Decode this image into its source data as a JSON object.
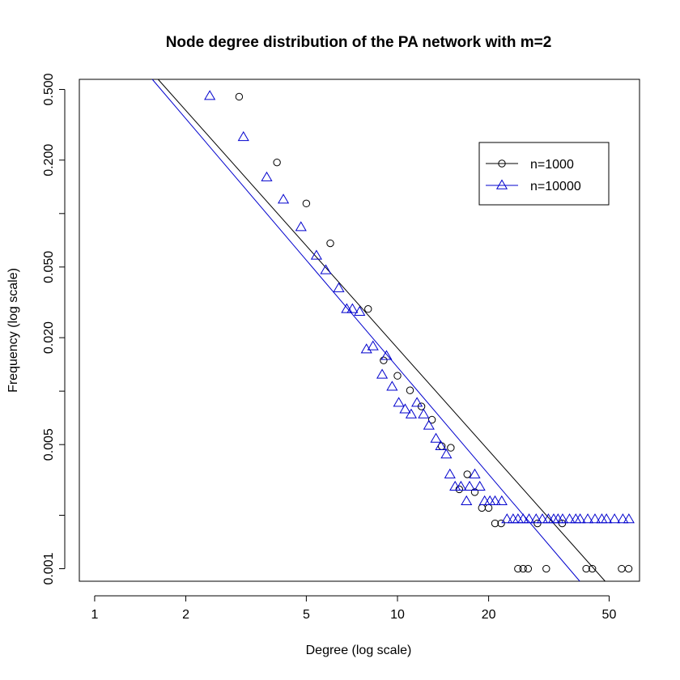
{
  "chart_data": {
    "type": "scatter",
    "title": "Node degree distribution of the PA network with m=2",
    "xlabel": "Degree (log scale)",
    "ylabel": "Frequency (log scale)",
    "x_scale": "log",
    "y_scale": "log",
    "xlim": [
      0.89,
      63
    ],
    "ylim": [
      0.00085,
      0.57
    ],
    "x_ticks": [
      1,
      2,
      5,
      10,
      20,
      50
    ],
    "x_tick_labels": [
      "1",
      "2",
      "5",
      "10",
      "20",
      "50"
    ],
    "y_ticks": [
      0.001,
      0.002,
      0.005,
      0.01,
      0.02,
      0.05,
      0.1,
      0.2,
      0.5
    ],
    "y_tick_labels": [
      "0.001",
      "",
      "0.005",
      "",
      "0.020",
      "0.050",
      "",
      "0.200",
      "0.500"
    ],
    "grid": false,
    "legend_position": "top-right",
    "series": [
      {
        "name": "n=1000",
        "color": "#000000",
        "marker": "circle",
        "points": [
          [
            3,
            0.455
          ],
          [
            4,
            0.194
          ],
          [
            5,
            0.114
          ],
          [
            6,
            0.068
          ],
          [
            8,
            0.029
          ],
          [
            9,
            0.0149
          ],
          [
            10,
            0.0122
          ],
          [
            11,
            0.0101
          ],
          [
            12,
            0.0082
          ],
          [
            13,
            0.0069
          ],
          [
            14,
            0.0049
          ],
          [
            15,
            0.0048
          ],
          [
            16,
            0.0028
          ],
          [
            17,
            0.0034
          ],
          [
            18,
            0.0027
          ],
          [
            19,
            0.0022
          ],
          [
            20,
            0.0022
          ],
          [
            21,
            0.0018
          ],
          [
            22,
            0.0018
          ],
          [
            25,
            0.001
          ],
          [
            26,
            0.001
          ],
          [
            27,
            0.001
          ],
          [
            29,
            0.0018
          ],
          [
            31,
            0.001
          ],
          [
            35,
            0.0018
          ],
          [
            42,
            0.001
          ],
          [
            44,
            0.001
          ],
          [
            55,
            0.001
          ],
          [
            58,
            0.001
          ]
        ],
        "fit_line": [
          [
            1.62,
            0.57
          ],
          [
            48.5,
            0.00085
          ]
        ]
      },
      {
        "name": "n=10000",
        "color": "#0000cd",
        "marker": "triangle",
        "points": [
          [
            2.4,
            0.46
          ],
          [
            3.1,
            0.27
          ],
          [
            3.7,
            0.16
          ],
          [
            4.2,
            0.12
          ],
          [
            4.8,
            0.084
          ],
          [
            5.4,
            0.058
          ],
          [
            5.8,
            0.048
          ],
          [
            6.4,
            0.038
          ],
          [
            6.8,
            0.029
          ],
          [
            7.1,
            0.029
          ],
          [
            7.5,
            0.028
          ],
          [
            7.9,
            0.0172
          ],
          [
            8.3,
            0.0179
          ],
          [
            8.9,
            0.0124
          ],
          [
            9.2,
            0.0158
          ],
          [
            9.6,
            0.0106
          ],
          [
            10.1,
            0.0086
          ],
          [
            10.6,
            0.0079
          ],
          [
            11.1,
            0.0074
          ],
          [
            11.6,
            0.0086
          ],
          [
            12.2,
            0.0074
          ],
          [
            12.7,
            0.0064
          ],
          [
            13.4,
            0.0054
          ],
          [
            13.9,
            0.0049
          ],
          [
            14.5,
            0.0044
          ],
          [
            14.9,
            0.0034
          ],
          [
            15.5,
            0.0029
          ],
          [
            16.2,
            0.0029
          ],
          [
            16.9,
            0.0024
          ],
          [
            17.3,
            0.0029
          ],
          [
            18.0,
            0.0034
          ],
          [
            18.7,
            0.0029
          ],
          [
            19.4,
            0.0024
          ],
          [
            20.2,
            0.0024
          ],
          [
            21.0,
            0.0024
          ],
          [
            22.1,
            0.0024
          ],
          [
            23.0,
            0.0019
          ],
          [
            24.1,
            0.0019
          ],
          [
            25.0,
            0.0019
          ],
          [
            26.0,
            0.0019
          ],
          [
            27.2,
            0.0019
          ],
          [
            28.7,
            0.0019
          ],
          [
            30.1,
            0.0019
          ],
          [
            31.5,
            0.0019
          ],
          [
            32.8,
            0.0019
          ],
          [
            33.9,
            0.0019
          ],
          [
            35.1,
            0.0019
          ],
          [
            37.0,
            0.0019
          ],
          [
            38.8,
            0.0019
          ],
          [
            40.1,
            0.0019
          ],
          [
            42.5,
            0.0019
          ],
          [
            44.9,
            0.0019
          ],
          [
            47.3,
            0.0019
          ],
          [
            49.0,
            0.0019
          ],
          [
            52.1,
            0.0019
          ],
          [
            55.5,
            0.0019
          ],
          [
            58.1,
            0.0019
          ]
        ],
        "fit_line": [
          [
            1.55,
            0.57
          ],
          [
            40.0,
            0.00085
          ]
        ]
      }
    ]
  }
}
